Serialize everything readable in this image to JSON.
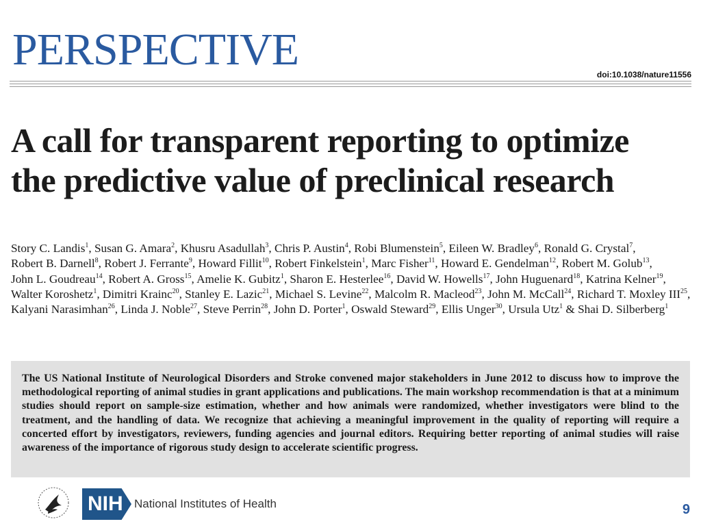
{
  "header": {
    "section_label": "PERSPECTIVE",
    "doi": "doi:10.1038/nature11556"
  },
  "article": {
    "title": "A call for transparent reporting to optimize the predictive value of preclinical research",
    "authors": [
      {
        "name": "Story C. Landis",
        "aff": "1"
      },
      {
        "name": "Susan G. Amara",
        "aff": "2"
      },
      {
        "name": "Khusru Asadullah",
        "aff": "3"
      },
      {
        "name": "Chris P. Austin",
        "aff": "4"
      },
      {
        "name": "Robi Blumenstein",
        "aff": "5"
      },
      {
        "name": "Eileen W. Bradley",
        "aff": "6"
      },
      {
        "name": "Ronald G. Crystal",
        "aff": "7"
      },
      {
        "name": "Robert B. Darnell",
        "aff": "8"
      },
      {
        "name": "Robert J. Ferrante",
        "aff": "9"
      },
      {
        "name": "Howard Fillit",
        "aff": "10"
      },
      {
        "name": "Robert Finkelstein",
        "aff": "1"
      },
      {
        "name": "Marc Fisher",
        "aff": "11"
      },
      {
        "name": "Howard E. Gendelman",
        "aff": "12"
      },
      {
        "name": "Robert M. Golub",
        "aff": "13"
      },
      {
        "name": "John L. Goudreau",
        "aff": "14"
      },
      {
        "name": "Robert A. Gross",
        "aff": "15"
      },
      {
        "name": "Amelie K. Gubitz",
        "aff": "1"
      },
      {
        "name": "Sharon E. Hesterlee",
        "aff": "16"
      },
      {
        "name": "David W. Howells",
        "aff": "17"
      },
      {
        "name": "John Huguenard",
        "aff": "18"
      },
      {
        "name": "Katrina Kelner",
        "aff": "19"
      },
      {
        "name": "Walter Koroshetz",
        "aff": "1"
      },
      {
        "name": "Dimitri Krainc",
        "aff": "20"
      },
      {
        "name": "Stanley E. Lazic",
        "aff": "21"
      },
      {
        "name": "Michael S. Levine",
        "aff": "22"
      },
      {
        "name": "Malcolm R. Macleod",
        "aff": "23"
      },
      {
        "name": "John M. McCall",
        "aff": "24"
      },
      {
        "name": "Richard T. Moxley III",
        "aff": "25"
      },
      {
        "name": "Kalyani Narasimhan",
        "aff": "26"
      },
      {
        "name": "Linda J. Noble",
        "aff": "27"
      },
      {
        "name": "Steve Perrin",
        "aff": "28"
      },
      {
        "name": "John D. Porter",
        "aff": "1"
      },
      {
        "name": "Oswald Steward",
        "aff": "29"
      },
      {
        "name": "Ellis Unger",
        "aff": "30"
      },
      {
        "name": "Ursula Utz",
        "aff": "1"
      },
      {
        "name": "Shai D. Silberberg",
        "aff": "1"
      }
    ],
    "final_conjunction": "&",
    "abstract": "The US National Institute of Neurological Disorders and Stroke convened major stakeholders in June 2012 to discuss how to improve the methodological reporting of animal studies in grant applications and publications. The main workshop recommendation is that at a minimum studies should report on sample-size estimation, whether and how animals were randomized, whether investigators were blind to the treatment, and the handling of data. We recognize that achieving a meaningful improvement in the quality of reporting will require a concerted effort by investigators, reviewers, funding agencies and journal editors. Requiring better reporting of animal studies will raise awareness of the importance of rigorous study design to accelerate scientific progress."
  },
  "footer": {
    "nih_logo_text": "NIH",
    "nih_name": "National Institutes of Health",
    "page_number": "9"
  }
}
